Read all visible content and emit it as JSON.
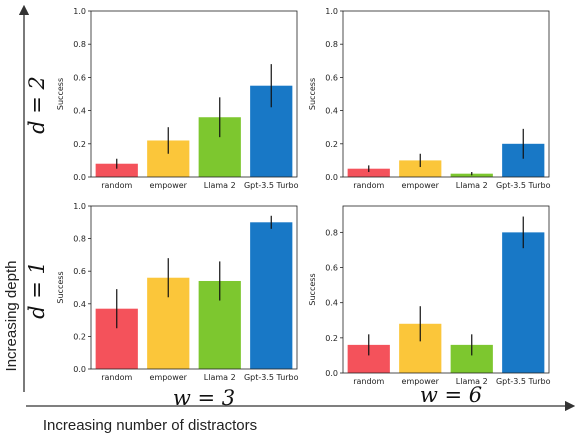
{
  "figure": {
    "y_axis_label": "Increasing depth",
    "x_axis_label": "Increasing number of distractors",
    "row_labels": [
      "d = 2",
      "d = 1"
    ],
    "col_labels": [
      "w = 3",
      "w = 6"
    ],
    "arrow_color": "#333333"
  },
  "colors": [
    "#f4525b",
    "#fbc63a",
    "#7dc72f",
    "#1878c6"
  ],
  "chart_data": [
    {
      "type": "bar",
      "panel": "d=2, w=3",
      "categories": [
        "random",
        "empower",
        "Llama 2",
        "Gpt-3.5 Turbo"
      ],
      "values": [
        0.08,
        0.22,
        0.36,
        0.55
      ],
      "error": [
        0.03,
        0.08,
        0.12,
        0.13
      ],
      "ylabel": "Success",
      "ylim": [
        0,
        1.0
      ],
      "yticks": [
        0.0,
        0.2,
        0.4,
        0.6,
        0.8,
        1.0
      ],
      "ytick_labels": [
        "0.0",
        "0.2",
        "0.4",
        "0.6",
        "0.8",
        "1.0"
      ]
    },
    {
      "type": "bar",
      "panel": "d=2, w=6",
      "categories": [
        "random",
        "empower",
        "Llama 2",
        "Gpt-3.5 Turbo"
      ],
      "values": [
        0.05,
        0.1,
        0.02,
        0.2
      ],
      "error": [
        0.02,
        0.04,
        0.01,
        0.09
      ],
      "ylabel": "Success",
      "ylim": [
        0,
        1.0
      ],
      "yticks": [
        0.0,
        0.2,
        0.4,
        0.6,
        0.8,
        1.0
      ],
      "ytick_labels": [
        "0.0",
        "0.2",
        "0.4",
        "0.6",
        "0.8",
        "1.0"
      ]
    },
    {
      "type": "bar",
      "panel": "d=1, w=3",
      "categories": [
        "random",
        "empower",
        "Llama 2",
        "Gpt-3.5 Turbo"
      ],
      "values": [
        0.37,
        0.56,
        0.54,
        0.9
      ],
      "error": [
        0.12,
        0.12,
        0.12,
        0.04
      ],
      "ylabel": "Success",
      "ylim": [
        0,
        1.0
      ],
      "yticks": [
        0.0,
        0.2,
        0.4,
        0.6,
        0.8,
        1.0
      ],
      "ytick_labels": [
        "0.0",
        "0.2",
        "0.4",
        "0.6",
        "0.8",
        "1.0"
      ]
    },
    {
      "type": "bar",
      "panel": "d=1, w=6",
      "categories": [
        "random",
        "empower",
        "Llama 2",
        "Gpt-3.5 Turbo"
      ],
      "values": [
        0.16,
        0.28,
        0.16,
        0.8
      ],
      "error": [
        0.06,
        0.1,
        0.06,
        0.09
      ],
      "ylabel": "Success",
      "ylim": [
        0,
        0.95
      ],
      "yticks": [
        0.0,
        0.2,
        0.4,
        0.6,
        0.8
      ],
      "ytick_labels": [
        "0.0",
        "0.2",
        "0.4",
        "0.6",
        "0.8"
      ]
    }
  ]
}
